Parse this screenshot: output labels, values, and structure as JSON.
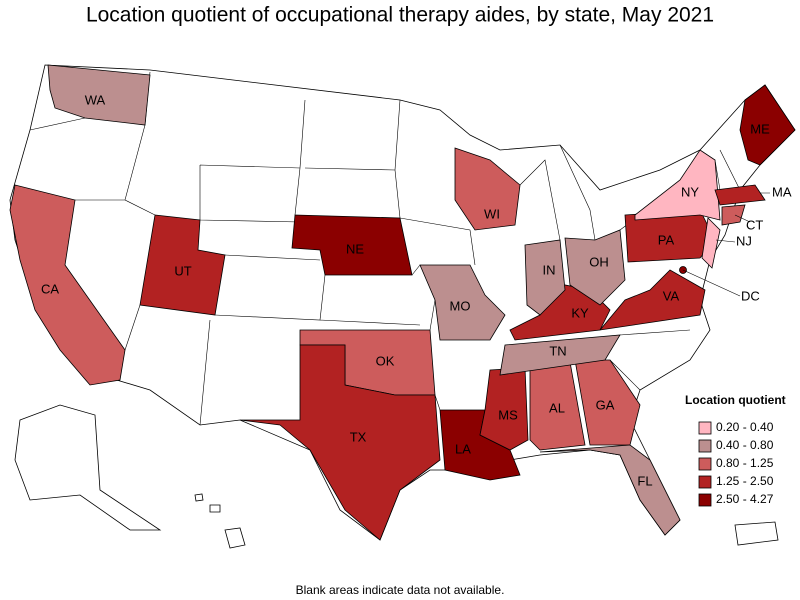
{
  "title": "Location quotient of occupational therapy aides, by state, May 2021",
  "footnote": "Blank areas indicate data not available.",
  "legend": {
    "title": "Location quotient",
    "items": [
      {
        "label": "0.20 - 0.40",
        "color": "#ffb6c1"
      },
      {
        "label": "0.40 - 0.80",
        "color": "#bc8f8f"
      },
      {
        "label": "0.80 - 1.25",
        "color": "#cd5c5c"
      },
      {
        "label": "1.25 - 2.50",
        "color": "#b22222"
      },
      {
        "label": "2.50 - 4.27",
        "color": "#8b0000"
      }
    ]
  },
  "states": [
    {
      "label": "WA",
      "color": "#bc8f8f"
    },
    {
      "label": "CA",
      "color": "#cd5c5c"
    },
    {
      "label": "UT",
      "color": "#b22222"
    },
    {
      "label": "NE",
      "color": "#8b0000"
    },
    {
      "label": "WI",
      "color": "#cd5c5c"
    },
    {
      "label": "MO",
      "color": "#bc8f8f"
    },
    {
      "label": "OK",
      "color": "#cd5c5c"
    },
    {
      "label": "TX",
      "color": "#b22222"
    },
    {
      "label": "LA",
      "color": "#8b0000"
    },
    {
      "label": "MS",
      "color": "#b22222"
    },
    {
      "label": "AL",
      "color": "#cd5c5c"
    },
    {
      "label": "GA",
      "color": "#cd5c5c"
    },
    {
      "label": "FL",
      "color": "#bc8f8f"
    },
    {
      "label": "TN",
      "color": "#bc8f8f"
    },
    {
      "label": "KY",
      "color": "#b22222"
    },
    {
      "label": "IN",
      "color": "#bc8f8f"
    },
    {
      "label": "OH",
      "color": "#bc8f8f"
    },
    {
      "label": "PA",
      "color": "#b22222"
    },
    {
      "label": "VA",
      "color": "#b22222"
    },
    {
      "label": "NY",
      "color": "#ffb6c1"
    },
    {
      "label": "ME",
      "color": "#8b0000"
    },
    {
      "label": "MA",
      "color": "#b22222"
    },
    {
      "label": "CT",
      "color": "#cd5c5c"
    },
    {
      "label": "NJ",
      "color": "#ffb6c1"
    },
    {
      "label": "DC",
      "color": "#8b0000"
    }
  ]
}
